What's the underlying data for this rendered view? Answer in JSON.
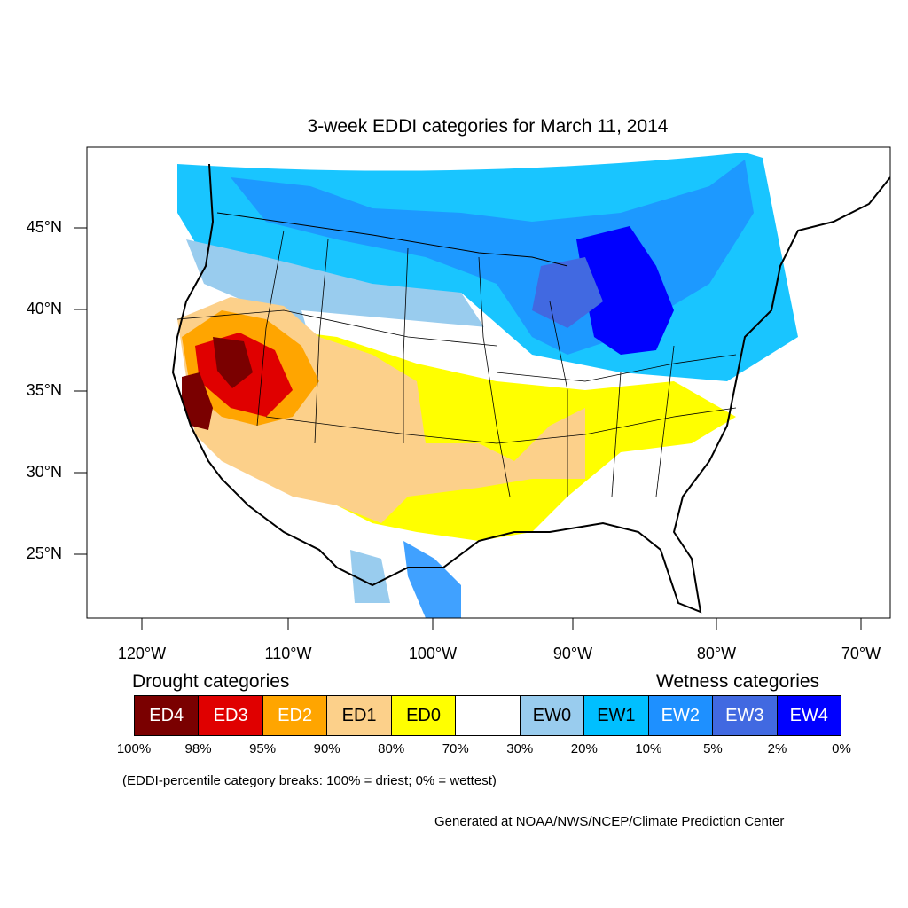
{
  "title": "3-week EDDI categories for March 11, 2014",
  "lat_labels": [
    "45°N",
    "40°N",
    "35°N",
    "30°N",
    "25°N"
  ],
  "lon_labels": [
    "120°W",
    "110°W",
    "100°W",
    "90°W",
    "80°W",
    "70°W"
  ],
  "legend": {
    "drought_heading": "Drought categories",
    "wetness_heading": "Wetness categories",
    "categories": [
      {
        "label": "ED4",
        "color": "#7a0000",
        "text_color": "#ffffff"
      },
      {
        "label": "ED3",
        "color": "#e00000",
        "text_color": "#ffffff"
      },
      {
        "label": "ED2",
        "color": "#ffa500",
        "text_color": "#ffffff"
      },
      {
        "label": "ED1",
        "color": "#fcd08a",
        "text_color": "#000000"
      },
      {
        "label": "ED0",
        "color": "#ffff00",
        "text_color": "#000000"
      },
      {
        "label": "",
        "color": "#ffffff",
        "text_color": "#000000"
      },
      {
        "label": "EW0",
        "color": "#99ccee",
        "text_color": "#000000"
      },
      {
        "label": "EW1",
        "color": "#00bfff",
        "text_color": "#000000"
      },
      {
        "label": "EW2",
        "color": "#1e90ff",
        "text_color": "#ffffff"
      },
      {
        "label": "EW3",
        "color": "#4169e1",
        "text_color": "#ffffff"
      },
      {
        "label": "EW4",
        "color": "#0000ff",
        "text_color": "#ffffff"
      }
    ],
    "breaks": [
      "100%",
      "98%",
      "95%",
      "90%",
      "80%",
      "70%",
      "30%",
      "20%",
      "10%",
      "5%",
      "2%",
      "0%"
    ]
  },
  "note": "(EDDI-percentile category breaks: 100% = driest; 0% = wettest)",
  "credit": "Generated at NOAA/NWS/NCEP/Climate Prediction Center"
}
